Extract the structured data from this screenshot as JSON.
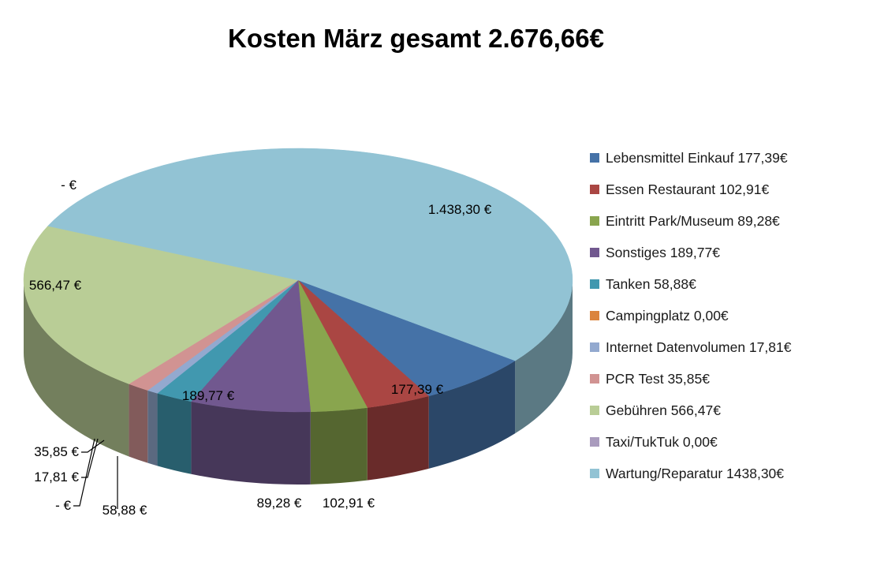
{
  "chart_data": {
    "type": "pie",
    "title": "Kosten März gesamt 2.676,66€",
    "slices": [
      {
        "legend": "Lebensmittel Einkauf 177,39€",
        "value": 177.39,
        "label": "177,39 €",
        "color": "#4572A7"
      },
      {
        "legend": "Essen Restaurant 102,91€",
        "value": 102.91,
        "label": "102,91 €",
        "color": "#AA4643"
      },
      {
        "legend": "Eintritt Park/Museum 89,28€",
        "value": 89.28,
        "label": "89,28 €",
        "color": "#89A54E"
      },
      {
        "legend": "Sonstiges 189,77€",
        "value": 189.77,
        "label": "189,77 €",
        "color": "#71588F"
      },
      {
        "legend": "Tanken 58,88€",
        "value": 58.88,
        "label": "58,88 €",
        "color": "#4198AF"
      },
      {
        "legend": "Campingplatz 0,00€",
        "value": 0.0,
        "label": "-   €",
        "color": "#DB843D"
      },
      {
        "legend": "Internet Datenvolumen 17,81€",
        "value": 17.81,
        "label": "17,81 €",
        "color": "#93A9CF"
      },
      {
        "legend": "PCR Test 35,85€",
        "value": 35.85,
        "label": "35,85 €",
        "color": "#D19392"
      },
      {
        "legend": "Gebühren 566,47€",
        "value": 566.47,
        "label": "566,47 €",
        "color": "#B9CD96"
      },
      {
        "legend": "Taxi/TukTuk 0,00€",
        "value": 0.0,
        "label": "-   €",
        "color": "#A99BBD"
      },
      {
        "legend": "Wartung/Reparatur 1438,30€",
        "value": 1438.3,
        "label": "1.438,30 €",
        "color": "#92C3D4"
      }
    ],
    "legend_position": "right"
  }
}
